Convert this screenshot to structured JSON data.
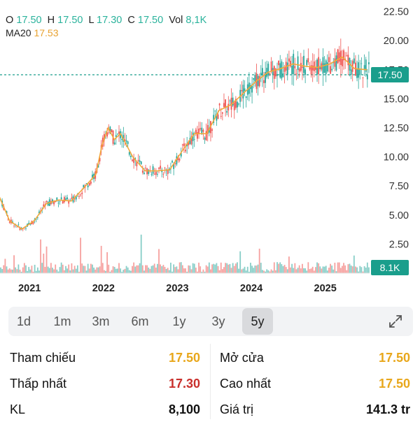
{
  "header": {
    "o_label": "O",
    "o": "17.50",
    "h_label": "H",
    "h": "17.50",
    "l_label": "L",
    "l": "17.30",
    "c_label": "C",
    "c": "17.50",
    "vol_label": "Vol",
    "vol": "8,1K",
    "ma_label": "MA20",
    "ma": "17.53"
  },
  "price_tag": "17.50",
  "volume_tag": "8.1K",
  "colors": {
    "up": "#26a69a",
    "down": "#ef5350",
    "ma": "#f2a93b",
    "tag": "#1a9e8c"
  },
  "timeframes": [
    "1d",
    "1m",
    "3m",
    "6m",
    "1y",
    "3y",
    "5y"
  ],
  "active_timeframe": "5y",
  "stats": {
    "reference_label": "Tham chiếu",
    "reference": "17.50",
    "open_label": "Mở cửa",
    "open": "17.50",
    "low_label": "Thấp nhất",
    "low": "17.30",
    "high_label": "Cao nhất",
    "high": "17.50",
    "volume_label": "KL",
    "volume": "8,100",
    "value_label": "Giá trị",
    "value": "141.3 tr"
  },
  "chart_data": {
    "type": "line",
    "x_ticks": [
      "2021",
      "2022",
      "2023",
      "2024",
      "2025"
    ],
    "y_ticks": [
      2.5,
      5.0,
      7.5,
      10.0,
      12.5,
      15.0,
      17.5,
      20.0,
      22.5
    ],
    "ylim": [
      0,
      23.5
    ],
    "current_price": 17.5,
    "series": [
      {
        "name": "MA20",
        "x": [
          "2020-08",
          "2020-10",
          "2020-12",
          "2021-02",
          "2021-04",
          "2021-06",
          "2021-08",
          "2021-10",
          "2021-12",
          "2022-01",
          "2022-02",
          "2022-03",
          "2022-04",
          "2022-06",
          "2022-08",
          "2022-10",
          "2022-12",
          "2023-02",
          "2023-04",
          "2023-06",
          "2023-08",
          "2023-10",
          "2023-12",
          "2024-02",
          "2024-04",
          "2024-06",
          "2024-08",
          "2024-10",
          "2024-12",
          "2025-02",
          "2025-04",
          "2025-06",
          "2025-08"
        ],
        "values": [
          7.0,
          4.5,
          3.8,
          4.5,
          6.0,
          6.3,
          6.2,
          7.3,
          8.5,
          11.0,
          12.5,
          11.5,
          12.0,
          10.0,
          8.8,
          8.8,
          8.9,
          10.5,
          12.0,
          12.0,
          14.0,
          14.5,
          15.5,
          16.5,
          17.3,
          17.6,
          18.0,
          17.8,
          17.7,
          18.0,
          18.6,
          17.6,
          17.5
        ]
      }
    ]
  }
}
